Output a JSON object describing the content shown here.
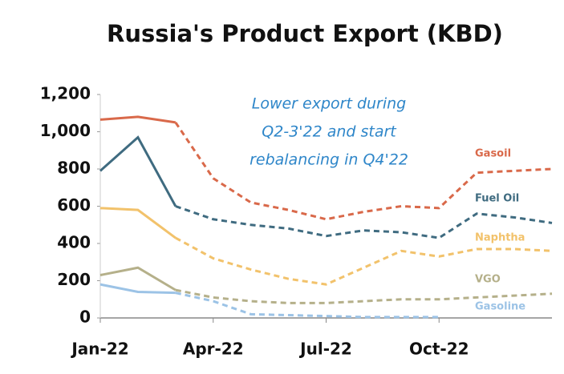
{
  "chart_data": {
    "type": "line",
    "title": "Russia's Product Export (KBD)",
    "annotation": [
      "Lower export during",
      "Q2-3'22 and start",
      "rebalancing in Q4'22"
    ],
    "categories": [
      "Jan-22",
      null,
      null,
      "Apr-22",
      null,
      null,
      "Jul-22",
      null,
      null,
      "Oct-22",
      null,
      null,
      null
    ],
    "ylim": [
      0,
      1200
    ],
    "yticks": [
      0,
      200,
      400,
      600,
      800,
      {
        "value": 1000,
        "label": "1,000"
      },
      {
        "value": 1200,
        "label": "1,200"
      }
    ],
    "grid": false,
    "series": [
      {
        "name": "Gasoil",
        "color": "#d9694a",
        "values": [
          1065,
          1080,
          1050,
          750,
          620,
          580,
          530,
          570,
          600,
          590,
          780,
          790,
          800
        ]
      },
      {
        "name": "Fuel Oil",
        "color": "#3f6b80",
        "values": [
          790,
          970,
          600,
          530,
          500,
          480,
          440,
          470,
          460,
          430,
          560,
          540,
          510
        ]
      },
      {
        "name": "Naphtha",
        "color": "#f2c26b",
        "values": [
          590,
          580,
          430,
          320,
          260,
          210,
          180,
          270,
          360,
          330,
          370,
          370,
          360
        ]
      },
      {
        "name": "VGO",
        "color": "#b5b08a",
        "values": [
          230,
          270,
          150,
          110,
          90,
          80,
          80,
          90,
          100,
          100,
          110,
          120,
          130
        ]
      },
      {
        "name": "Gasoline",
        "color": "#9cc3e6",
        "values": [
          180,
          140,
          135,
          90,
          20,
          15,
          10,
          5,
          5,
          5,
          null,
          null,
          null
        ]
      }
    ]
  }
}
